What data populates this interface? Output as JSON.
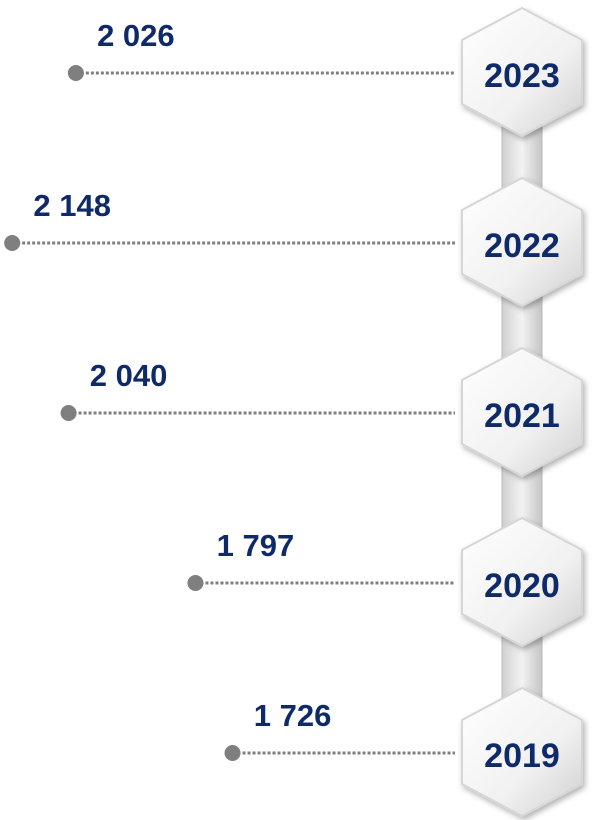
{
  "chart_data": {
    "type": "timeline-lollipop",
    "categories": [
      "2023",
      "2022",
      "2021",
      "2020",
      "2019"
    ],
    "values": [
      2026,
      2148,
      2040,
      1797,
      1726
    ],
    "value_labels": [
      "2 026",
      "2 148",
      "2 040",
      "1 797",
      "1 726"
    ],
    "xlim": [
      1300,
      2200
    ],
    "color": "#7f7f7f"
  }
}
